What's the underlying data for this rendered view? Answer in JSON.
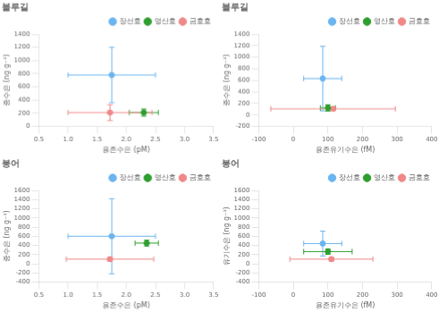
{
  "chart_data": [
    {
      "type": "scatter",
      "title": "블루길",
      "x_label": "용존수은 (pM)",
      "y_label": "종수은 (ng g⁻¹)",
      "xlim": [
        0.5,
        3.5
      ],
      "ylim": [
        0,
        1400
      ],
      "xticks": [
        0.5,
        {
          "value": 1.0,
          "label": "1.0"
        },
        1.5,
        {
          "value": 2.0,
          "label": "2.0"
        },
        2.5,
        {
          "value": 3.0,
          "label": "3.0"
        },
        3.5
      ],
      "yticks": [
        0,
        200,
        400,
        600,
        800,
        1000,
        1200,
        1400
      ],
      "grid": false,
      "legend": "upper right",
      "marker": "circle",
      "series": [
        {
          "name": "장선호",
          "color": "#6ab4f0",
          "x": [
            1.75
          ],
          "values": [
            780
          ],
          "xerr": [
            0.75
          ],
          "yerr": [
            420
          ]
        },
        {
          "name": "영산호",
          "color": "#2e9e2e",
          "x": [
            2.3
          ],
          "values": [
            210
          ],
          "xerr": [
            0.25
          ],
          "yerr": [
            55
          ]
        },
        {
          "name": "금호호",
          "color": "#f08888",
          "x": [
            1.72
          ],
          "values": [
            210
          ],
          "xerr": [
            0.72
          ],
          "yerr": [
            120
          ]
        }
      ]
    },
    {
      "type": "scatter",
      "title": "블루길",
      "x_label": "용존유기수은 (fM)",
      "y_label": "종수은 (ng g⁻¹)",
      "xlim": [
        -100,
        400
      ],
      "ylim": [
        -200,
        1400
      ],
      "xticks": [
        -100,
        0,
        100,
        200,
        300,
        400
      ],
      "yticks": [
        -200,
        0,
        200,
        400,
        600,
        800,
        1000,
        1200,
        1400
      ],
      "grid": false,
      "legend": "upper right",
      "marker": "circle",
      "series": [
        {
          "name": "장선호",
          "color": "#6ab4f0",
          "x": [
            85
          ],
          "values": [
            630
          ],
          "xerr": [
            55
          ],
          "yerr": [
            560
          ]
        },
        {
          "name": "영산호",
          "color": "#2e9e2e",
          "x": [
            100
          ],
          "values": [
            120
          ],
          "xerr": [
            22
          ],
          "yerr": [
            55
          ]
        },
        {
          "name": "금호호",
          "color": "#f08888",
          "x": [
            115
          ],
          "values": [
            105
          ],
          "xerr": [
            180
          ],
          "yerr": [
            30
          ]
        }
      ]
    },
    {
      "type": "scatter",
      "title": "붕어",
      "x_label": "용존수은 (pM)",
      "y_label": "종수은 (ng g⁻¹)",
      "xlim": [
        0.5,
        3.5
      ],
      "ylim": [
        -400,
        1600
      ],
      "xticks": [
        0.5,
        {
          "value": 1.0,
          "label": "1.0"
        },
        1.5,
        {
          "value": 2.0,
          "label": "2.0"
        },
        2.5,
        {
          "value": 3.0,
          "label": "3.0"
        },
        3.5
      ],
      "yticks": [
        -400,
        -200,
        0,
        200,
        400,
        600,
        800,
        1000,
        1200,
        1400,
        1600
      ],
      "grid": false,
      "legend": "upper right",
      "marker": "circle",
      "series": [
        {
          "name": "장선호",
          "color": "#6ab4f0",
          "x": [
            1.75
          ],
          "values": [
            600
          ],
          "xerr": [
            0.75
          ],
          "yerr": [
            820
          ]
        },
        {
          "name": "영산호",
          "color": "#2e9e2e",
          "x": [
            2.35
          ],
          "values": [
            450
          ],
          "xerr": [
            0.2
          ],
          "yerr": [
            65
          ]
        },
        {
          "name": "금호호",
          "color": "#f08888",
          "x": [
            1.72
          ],
          "values": [
            100
          ],
          "xerr": [
            0.75
          ],
          "yerr": [
            45
          ]
        }
      ]
    },
    {
      "type": "scatter",
      "title": "붕어",
      "x_label": "용존유기수은 (fM)",
      "y_label": "유기수은 (ng g⁻¹)",
      "xlim": [
        -100,
        400
      ],
      "ylim": [
        -400,
        1600
      ],
      "xticks": [
        -100,
        0,
        100,
        200,
        300,
        400
      ],
      "yticks": [
        -400,
        -200,
        0,
        200,
        400,
        600,
        800,
        1000,
        1200,
        1400,
        1600
      ],
      "grid": false,
      "legend": "upper right",
      "marker": "circle",
      "series": [
        {
          "name": "장선호",
          "color": "#6ab4f0",
          "x": [
            85
          ],
          "values": [
            440
          ],
          "xerr": [
            55
          ],
          "yerr": [
            270
          ]
        },
        {
          "name": "영산호",
          "color": "#2e9e2e",
          "x": [
            100
          ],
          "values": [
            265
          ],
          "xerr": [
            70
          ],
          "yerr": [
            60
          ]
        },
        {
          "name": "금호호",
          "color": "#f08888",
          "x": [
            110
          ],
          "values": [
            100
          ],
          "xerr": [
            120
          ],
          "yerr": [
            40
          ]
        }
      ]
    }
  ]
}
